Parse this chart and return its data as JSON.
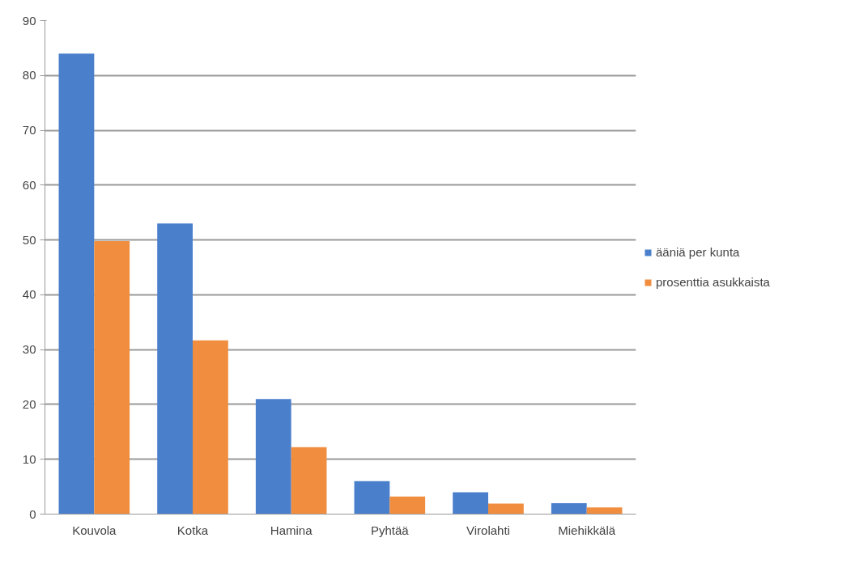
{
  "chart_data": {
    "type": "bar",
    "categories": [
      "Kouvola",
      "Kotka",
      "Hamina",
      "Pyhtää",
      "Virolahti",
      "Miehikkälä"
    ],
    "series": [
      {
        "name": "ääniä per kunta",
        "color": "#4a7fcc",
        "values": [
          84,
          53,
          21,
          6,
          4,
          2
        ]
      },
      {
        "name": "prosenttia asukkaista",
        "color": "#f18d3e",
        "values": [
          49.8,
          31.7,
          12.2,
          3.2,
          1.9,
          1.2
        ]
      }
    ],
    "ylim": [
      0,
      90
    ],
    "yticks": [
      0,
      10,
      20,
      30,
      40,
      50,
      60,
      70,
      80,
      90
    ],
    "grid": "y",
    "legend": "right"
  }
}
